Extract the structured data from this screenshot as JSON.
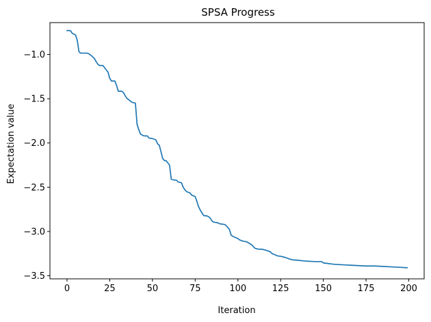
{
  "chart_data": {
    "type": "line",
    "title": "SPSA Progress",
    "xlabel": "Iteration",
    "ylabel": "Expectation value",
    "xlim": [
      -10,
      209
    ],
    "ylim": [
      -3.535,
      -0.64
    ],
    "xticks": [
      0,
      25,
      50,
      75,
      100,
      125,
      150,
      175,
      200
    ],
    "xtick_labels": [
      "0",
      "25",
      "50",
      "75",
      "100",
      "125",
      "150",
      "175",
      "200"
    ],
    "yticks": [
      -1.0,
      -1.5,
      -2.0,
      -2.5,
      -3.0,
      -3.5
    ],
    "ytick_labels": [
      "−1.0",
      "−1.5",
      "−2.0",
      "−2.5",
      "−3.0",
      "−3.5"
    ],
    "grid": false,
    "line_color": "#1f77b4",
    "series": [
      {
        "x": [
          0,
          2,
          3,
          5,
          6,
          7,
          8,
          10,
          12,
          13,
          14,
          16,
          17,
          18,
          19,
          21,
          23,
          24,
          25,
          26,
          28,
          29,
          30,
          32,
          33,
          34,
          35,
          37,
          38,
          40,
          41,
          42,
          43,
          45,
          47,
          48,
          50,
          52,
          53,
          54,
          55,
          56,
          57,
          58,
          60,
          61,
          63,
          64,
          65,
          67,
          68,
          69,
          70,
          72,
          73,
          75,
          76,
          77,
          78,
          80,
          82,
          83,
          84,
          85,
          86,
          88,
          89,
          90,
          92,
          93,
          95,
          96,
          97,
          100,
          101,
          103,
          105,
          108,
          110,
          112,
          114,
          117,
          119,
          120,
          122,
          123,
          125,
          128,
          130,
          132,
          135,
          140,
          145,
          149,
          150,
          152,
          156,
          160,
          165,
          170,
          175,
          180,
          185,
          190,
          195,
          199
        ],
        "y": [
          -0.73,
          -0.73,
          -0.76,
          -0.78,
          -0.84,
          -0.97,
          -0.985,
          -0.985,
          -0.985,
          -0.995,
          -1.01,
          -1.045,
          -1.08,
          -1.11,
          -1.125,
          -1.125,
          -1.175,
          -1.2,
          -1.27,
          -1.3,
          -1.3,
          -1.35,
          -1.415,
          -1.415,
          -1.43,
          -1.465,
          -1.495,
          -1.525,
          -1.54,
          -1.55,
          -1.79,
          -1.85,
          -1.9,
          -1.92,
          -1.92,
          -1.945,
          -1.95,
          -1.965,
          -2.01,
          -2.025,
          -2.1,
          -2.175,
          -2.2,
          -2.2,
          -2.25,
          -2.41,
          -2.42,
          -2.42,
          -2.44,
          -2.45,
          -2.5,
          -2.53,
          -2.55,
          -2.565,
          -2.59,
          -2.605,
          -2.66,
          -2.72,
          -2.76,
          -2.82,
          -2.825,
          -2.835,
          -2.855,
          -2.885,
          -2.895,
          -2.9,
          -2.91,
          -2.915,
          -2.92,
          -2.93,
          -2.975,
          -3.04,
          -3.055,
          -3.08,
          -3.095,
          -3.11,
          -3.115,
          -3.15,
          -3.19,
          -3.2,
          -3.2,
          -3.215,
          -3.23,
          -3.25,
          -3.265,
          -3.275,
          -3.28,
          -3.295,
          -3.31,
          -3.32,
          -3.325,
          -3.335,
          -3.34,
          -3.34,
          -3.355,
          -3.36,
          -3.37,
          -3.375,
          -3.38,
          -3.385,
          -3.39,
          -3.39,
          -3.395,
          -3.4,
          -3.405,
          -3.41
        ]
      }
    ]
  }
}
